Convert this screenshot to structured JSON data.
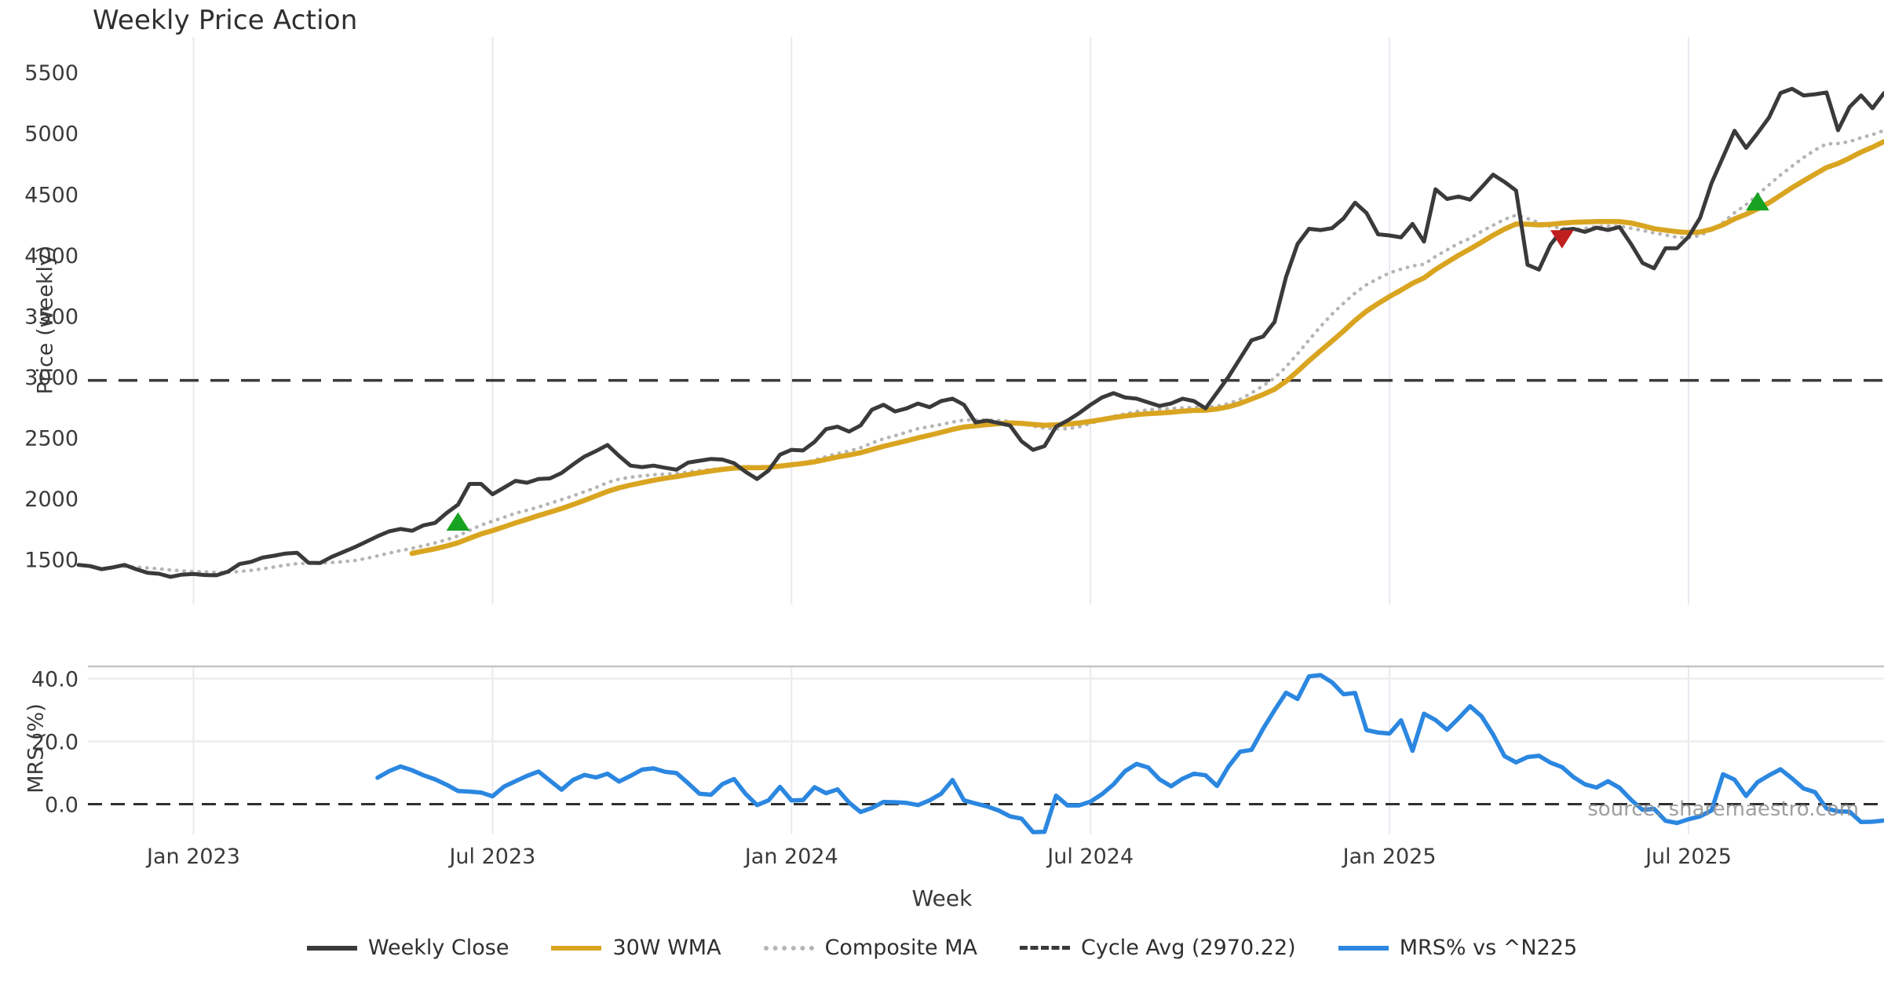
{
  "title": "Weekly Price Action",
  "source_note": "source: sharemaestro.com",
  "xlabel": "Week",
  "top_panel": {
    "ylabel": "Price (weekly)",
    "ytick_values": [
      5500,
      5000,
      4500,
      4000,
      3500,
      3000,
      2500,
      2000,
      1500
    ],
    "cycle_avg": 2970.22
  },
  "bottom_panel": {
    "ylabel": "MRS (%)",
    "ytick_labels": [
      "40.0",
      "20.0",
      "0.0"
    ],
    "ytick_values": [
      40,
      20,
      0
    ],
    "zero_line": 0
  },
  "x_ticks": [
    {
      "index": 10,
      "label": "Jan 2023"
    },
    {
      "index": 36,
      "label": "Jul 2023"
    },
    {
      "index": 62,
      "label": "Jan 2024"
    },
    {
      "index": 88,
      "label": "Jul 2024"
    },
    {
      "index": 114,
      "label": "Jan 2025"
    },
    {
      "index": 140,
      "label": "Jul 2025"
    }
  ],
  "legend": [
    {
      "label": "Weekly Close",
      "color": "#3a3a3a",
      "style": "solid"
    },
    {
      "label": "30W WMA",
      "color": "#d9a521",
      "style": "solid"
    },
    {
      "label": "Composite MA",
      "color": "#b5b5b5",
      "style": "dotted"
    },
    {
      "label": "Cycle Avg (2970.22)",
      "color": "#3a3a3a",
      "style": "dashed"
    },
    {
      "label": "MRS% vs ^N225",
      "color": "#2b87e0",
      "style": "solid"
    }
  ],
  "colors": {
    "close": "#3a3a3a",
    "wma": "#d9a521",
    "composite": "#b5b5b5",
    "cycle": "#3a3a3a",
    "mrs": "#2b87e0",
    "buy_marker": "#17a321",
    "sell_marker": "#c01f1f",
    "grid": "#e9eaf0",
    "hgrid": "#ededed",
    "spine": "#c4c4c4",
    "text": "#3a3a3a",
    "source_text": "#8f8f8f"
  },
  "chart_data": {
    "type": "line",
    "x_domain": {
      "start_date": "2022-10-24",
      "step_days": 7,
      "points": 158
    },
    "panels": [
      "price",
      "mrs"
    ],
    "series": [
      {
        "name": "Weekly Close",
        "panel": "price",
        "color": "#3a3a3a",
        "values": [
          1455,
          1445,
          1420,
          1435,
          1455,
          1420,
          1390,
          1382,
          1357,
          1375,
          1380,
          1372,
          1370,
          1400,
          1462,
          1480,
          1515,
          1530,
          1548,
          1555,
          1472,
          1470,
          1520,
          1560,
          1600,
          1645,
          1690,
          1730,
          1750,
          1735,
          1780,
          1800,
          1880,
          1950,
          2120,
          2120,
          2035,
          2090,
          2145,
          2130,
          2160,
          2165,
          2210,
          2280,
          2345,
          2390,
          2440,
          2350,
          2270,
          2258,
          2270,
          2253,
          2237,
          2295,
          2310,
          2325,
          2320,
          2290,
          2220,
          2160,
          2230,
          2360,
          2400,
          2395,
          2465,
          2570,
          2590,
          2550,
          2600,
          2730,
          2770,
          2715,
          2740,
          2780,
          2750,
          2800,
          2820,
          2770,
          2625,
          2640,
          2620,
          2600,
          2470,
          2400,
          2430,
          2590,
          2640,
          2700,
          2770,
          2830,
          2865,
          2830,
          2820,
          2790,
          2760,
          2780,
          2820,
          2800,
          2740,
          2870,
          3000,
          3150,
          3300,
          3330,
          3450,
          3820,
          4090,
          4215,
          4205,
          4220,
          4300,
          4430,
          4345,
          4170,
          4160,
          4145,
          4255,
          4110,
          4540,
          4460,
          4480,
          4455,
          4555,
          4660,
          4600,
          4530,
          3920,
          3880,
          4085,
          4205,
          4215,
          4190,
          4225,
          4205,
          4230,
          4090,
          3935,
          3890,
          4055,
          4055,
          4150,
          4305,
          4590,
          4805,
          5020,
          4880,
          5000,
          5130,
          5330,
          5365,
          5310,
          5320,
          5335,
          5025,
          5215,
          5310,
          5205,
          5330
        ]
      },
      {
        "name": "30W WMA",
        "panel": "price",
        "color": "#d9a521",
        "derived": "wma30_of_weekly_close",
        "window": 30
      },
      {
        "name": "Composite MA",
        "panel": "price",
        "color": "#b5b5b5",
        "derived": "mean_of_sma_windows",
        "windows": [
          5,
          10,
          20,
          30
        ],
        "min_index": 4
      },
      {
        "name": "Cycle Avg",
        "panel": "price",
        "color": "#3a3a3a",
        "constant": 2970.22
      },
      {
        "name": "MRS% vs ^N225",
        "panel": "mrs",
        "color": "#2b87e0",
        "start_index": 26,
        "values": [
          8.4,
          10.5,
          12.0,
          10.8,
          9.2,
          7.9,
          6.2,
          4.2,
          4.0,
          3.7,
          2.5,
          5.6,
          7.3,
          9.0,
          10.4,
          7.5,
          4.6,
          7.7,
          9.3,
          8.5,
          9.7,
          7.2,
          9.0,
          11.0,
          11.4,
          10.3,
          9.9,
          6.7,
          3.3,
          3.0,
          6.4,
          8.0,
          3.3,
          -0.3,
          1.2,
          5.5,
          1.2,
          1.3,
          5.4,
          3.5,
          4.7,
          0.5,
          -2.5,
          -1.2,
          0.7,
          0.6,
          0.4,
          -0.3,
          1.2,
          3.3,
          7.7,
          1.2,
          0.2,
          -0.7,
          -2.0,
          -3.9,
          -4.6,
          -8.9,
          -8.8,
          2.7,
          -0.4,
          -0.4,
          0.8,
          3.2,
          6.3,
          10.5,
          12.8,
          11.7,
          7.9,
          5.7,
          8.1,
          9.7,
          9.2,
          5.8,
          12.0,
          16.7,
          17.3,
          24.0,
          29.9,
          35.5,
          33.5,
          40.7,
          41.1,
          38.8,
          35.0,
          35.4,
          23.6,
          22.8,
          22.5,
          26.7,
          17.0,
          28.8,
          26.8,
          23.7,
          27.3,
          31.2,
          28.0,
          22.2,
          15.3,
          13.3,
          15.0,
          15.4,
          13.2,
          11.8,
          8.6,
          6.3,
          5.3,
          7.3,
          5.2,
          1.4,
          -1.8,
          -1.5,
          -5.3,
          -6.0,
          -4.8,
          -3.9,
          -2.0,
          9.5,
          7.8,
          2.6,
          7.0,
          9.2,
          11.1,
          8.2,
          5.0,
          3.8,
          -1.4,
          -2.3,
          -2.4,
          -5.7,
          -5.6,
          -5.2
        ]
      }
    ],
    "markers": [
      {
        "type": "buy",
        "shape": "triangle-up",
        "date": "2023-06-12",
        "index": 33,
        "value": 1810,
        "color": "#17a321"
      },
      {
        "type": "sell",
        "shape": "triangle-down",
        "date": "2025-04-14",
        "index": 129,
        "value": 4130,
        "color": "#c01f1f"
      },
      {
        "type": "buy",
        "shape": "triangle-up",
        "date": "2025-08-11",
        "index": 146,
        "value": 4440,
        "color": "#17a321"
      }
    ],
    "ylim_price": [
      1130,
      5790
    ],
    "ylim_mrs": [
      -9.6,
      43.9
    ],
    "grid": "vertical-only-top, horizontal-bottom",
    "legend_position": "bottom-center"
  }
}
